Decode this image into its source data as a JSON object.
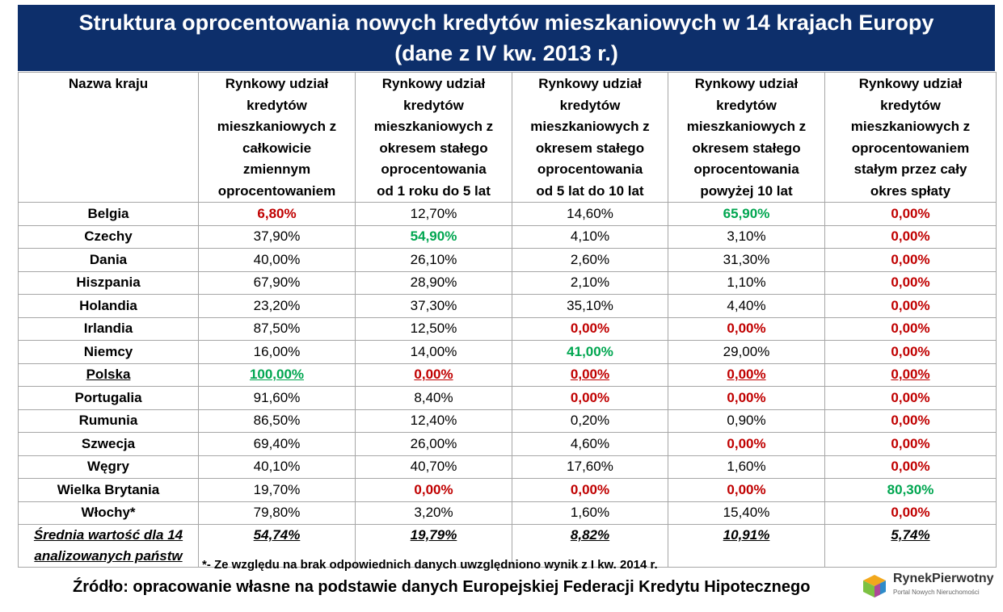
{
  "title": {
    "line1": "Struktura oprocentowania nowych kredytów mieszkaniowych w 14 krajach Europy",
    "line2": "(dane z IV kw. 2013 r.)"
  },
  "columns": [
    [
      "Nazwa kraju"
    ],
    [
      "Rynkowy udział",
      "kredytów",
      "mieszkaniowych z",
      "całkowicie",
      "zmiennym",
      "oprocentowaniem"
    ],
    [
      "Rynkowy udział",
      "kredytów",
      "mieszkaniowych z",
      "okresem stałego",
      "oprocentowania",
      "od 1 roku do 5 lat"
    ],
    [
      "Rynkowy udział",
      "kredytów",
      "mieszkaniowych z",
      "okresem stałego",
      "oprocentowania",
      "od 5 lat do 10 lat"
    ],
    [
      "Rynkowy udział",
      "kredytów",
      "mieszkaniowych z",
      "okresem stałego",
      "oprocentowania",
      "powyżej 10 lat"
    ],
    [
      "Rynkowy udział",
      "kredytów",
      "mieszkaniowych z",
      "oprocentowaniem",
      "stałym przez cały",
      "okres spłaty"
    ]
  ],
  "rows": [
    {
      "country": "Belgia",
      "values": [
        "6,80%",
        "12,70%",
        "14,60%",
        "65,90%",
        "0,00%"
      ],
      "styles": [
        "red",
        "",
        "",
        "green",
        "red"
      ]
    },
    {
      "country": "Czechy",
      "values": [
        "37,90%",
        "54,90%",
        "4,10%",
        "3,10%",
        "0,00%"
      ],
      "styles": [
        "",
        "green",
        "",
        "",
        "red"
      ]
    },
    {
      "country": "Dania",
      "values": [
        "40,00%",
        "26,10%",
        "2,60%",
        "31,30%",
        "0,00%"
      ],
      "styles": [
        "",
        "",
        "",
        "",
        "red"
      ]
    },
    {
      "country": "Hiszpania",
      "values": [
        "67,90%",
        "28,90%",
        "2,10%",
        "1,10%",
        "0,00%"
      ],
      "styles": [
        "",
        "",
        "",
        "",
        "red"
      ]
    },
    {
      "country": "Holandia",
      "values": [
        "23,20%",
        "37,30%",
        "35,10%",
        "4,40%",
        "0,00%"
      ],
      "styles": [
        "",
        "",
        "",
        "",
        "red"
      ]
    },
    {
      "country": "Irlandia",
      "values": [
        "87,50%",
        "12,50%",
        "0,00%",
        "0,00%",
        "0,00%"
      ],
      "styles": [
        "",
        "",
        "red",
        "red",
        "red"
      ]
    },
    {
      "country": "Niemcy",
      "values": [
        "16,00%",
        "14,00%",
        "41,00%",
        "29,00%",
        "0,00%"
      ],
      "styles": [
        "",
        "",
        "green",
        "",
        "red"
      ]
    },
    {
      "country": "Polska",
      "values": [
        "100,00%",
        "0,00%",
        "0,00%",
        "0,00%",
        "0,00%"
      ],
      "styles": [
        "green u",
        "red u",
        "red u",
        "red u",
        "red u"
      ],
      "highlight": true
    },
    {
      "country": "Portugalia",
      "values": [
        "91,60%",
        "8,40%",
        "0,00%",
        "0,00%",
        "0,00%"
      ],
      "styles": [
        "",
        "",
        "red",
        "red",
        "red"
      ]
    },
    {
      "country": "Rumunia",
      "values": [
        "86,50%",
        "12,40%",
        "0,20%",
        "0,90%",
        "0,00%"
      ],
      "styles": [
        "",
        "",
        "",
        "",
        "red"
      ]
    },
    {
      "country": "Szwecja",
      "values": [
        "69,40%",
        "26,00%",
        "4,60%",
        "0,00%",
        "0,00%"
      ],
      "styles": [
        "",
        "",
        "",
        "red",
        "red"
      ]
    },
    {
      "country": "Węgry",
      "values": [
        "40,10%",
        "40,70%",
        "17,60%",
        "1,60%",
        "0,00%"
      ],
      "styles": [
        "",
        "",
        "",
        "",
        "red"
      ]
    },
    {
      "country": "Wielka Brytania",
      "values": [
        "19,70%",
        "0,00%",
        "0,00%",
        "0,00%",
        "80,30%"
      ],
      "styles": [
        "",
        "red",
        "red",
        "red",
        "green"
      ]
    },
    {
      "country": "Włochy*",
      "values": [
        "79,80%",
        "3,20%",
        "1,60%",
        "15,40%",
        "0,00%"
      ],
      "styles": [
        "",
        "",
        "",
        "",
        "red"
      ]
    }
  ],
  "average": {
    "label_line1": "Średnia wartość dla 14",
    "label_line2": "analizowanych państw",
    "values": [
      "54,74%",
      "19,79%",
      "8,82%",
      "10,91%",
      "5,74%"
    ]
  },
  "footnote": "*- Ze względu na brak odpowiednich danych uwzględniono wynik z I kw. 2014 r.",
  "source": "Źródło: opracowanie własne na podstawie danych Europejskiej Federacji Kredytu Hipotecznego",
  "logo": {
    "name": "RynekPierwotny",
    "tagline": "Portal Nowych Nieruchomości",
    "icon": "house-cube-icon"
  },
  "colors": {
    "title_bg": "#0d2f6b",
    "red": "#c00000",
    "green": "#00a650"
  }
}
